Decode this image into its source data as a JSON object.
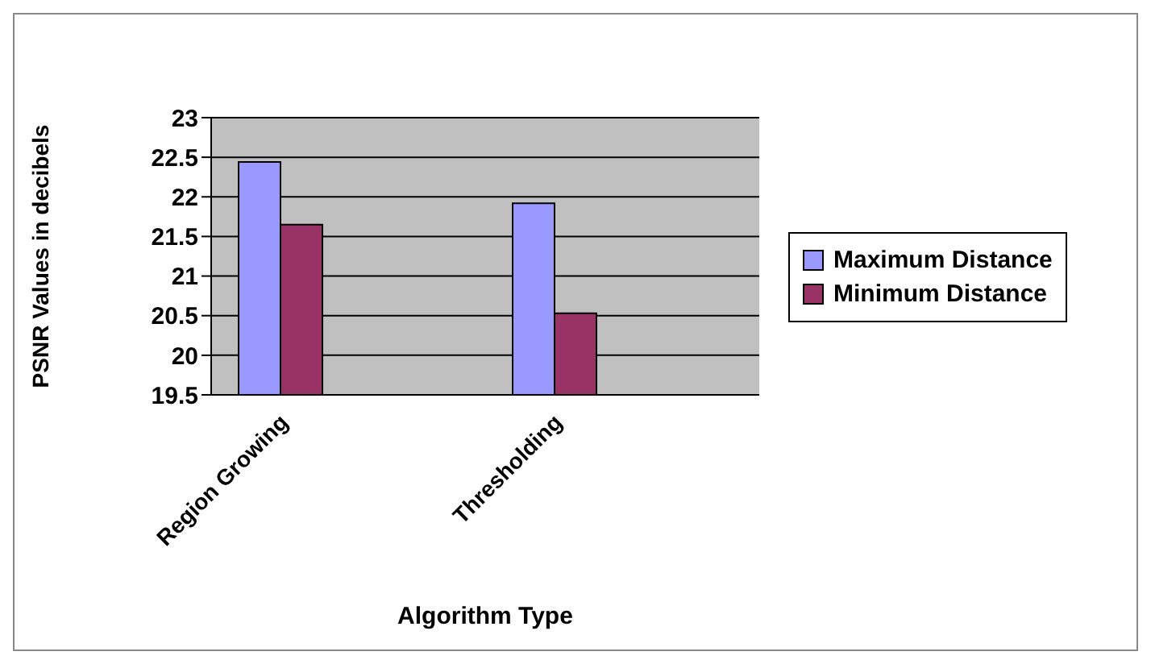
{
  "chart_data": {
    "type": "bar",
    "xlabel": "Algorithm Type",
    "ylabel": "PSNR Values in decibels",
    "categories": [
      "Region Growing",
      null,
      "Thresholding",
      null
    ],
    "series": [
      {
        "name": "Maximum Distance",
        "color": "#9999ff",
        "values": [
          22.44,
          null,
          21.92,
          null
        ]
      },
      {
        "name": "Minimum Distance",
        "color": "#993366",
        "values": [
          21.65,
          null,
          20.53,
          null
        ]
      }
    ],
    "ylim": [
      19.5,
      23
    ],
    "yticks": [
      19.5,
      20,
      20.5,
      21,
      21.5,
      22,
      22.5,
      23
    ],
    "grid": "y",
    "legend": "right"
  }
}
